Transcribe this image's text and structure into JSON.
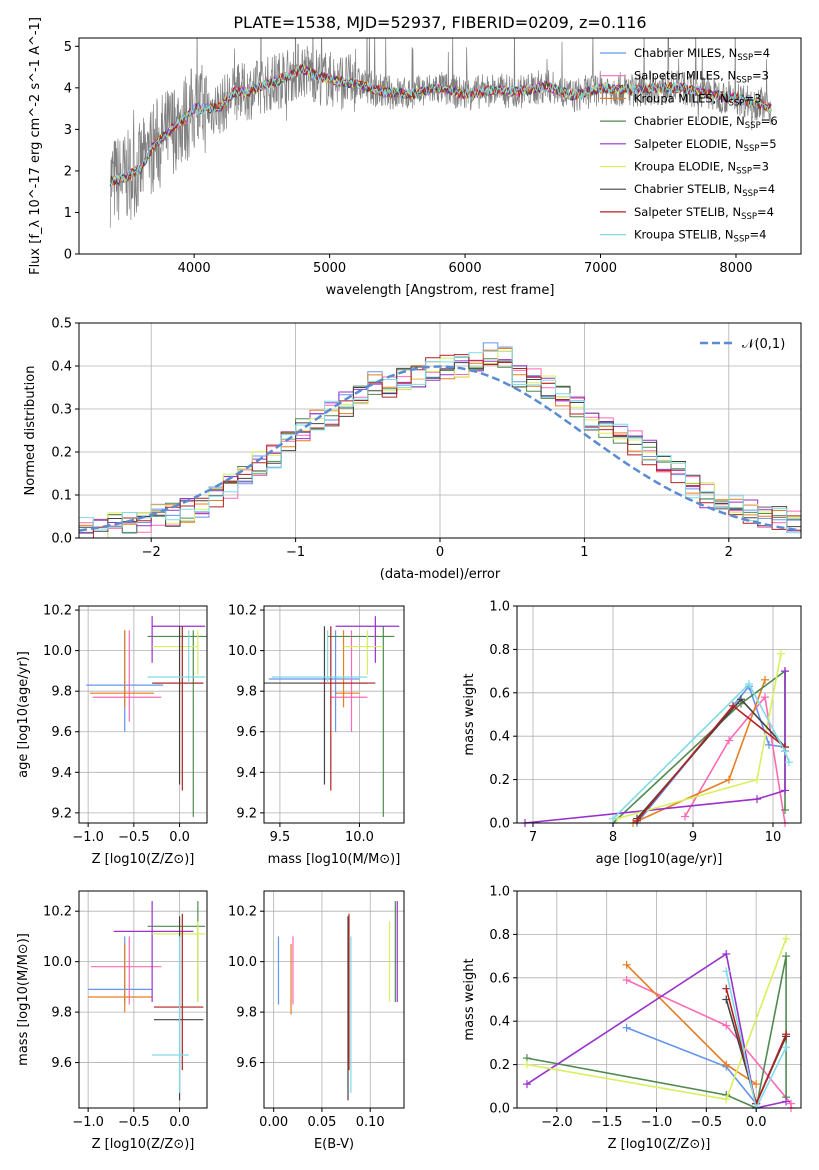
{
  "figure": {
    "title": "PLATE=1538, MJD=52937, FIBERID=0209, z=0.116"
  },
  "chart_data": [
    {
      "id": "spectrum",
      "type": "line",
      "xlabel": "wavelength [Angstrom, rest frame]",
      "ylabel": "Flux [f_λ 10^-17 erg cm^-2 s^-1 A^-1]",
      "xlim": [
        3150,
        8480
      ],
      "ylim": [
        0,
        5.2
      ],
      "xticks": [
        4000,
        5000,
        6000,
        7000,
        8000
      ],
      "yticks": [
        0,
        1,
        2,
        3,
        4,
        5
      ],
      "data_color": "#808080",
      "data_series": {
        "name": "",
        "x": [
          3380,
          3500,
          3600,
          3700,
          3800,
          3900,
          3950,
          4000,
          4100,
          4200,
          4300,
          4400,
          4500,
          4600,
          4700,
          4800,
          4900,
          5000,
          5200,
          5400,
          5600,
          5800,
          6000,
          6200,
          6400,
          6600,
          6800,
          7000,
          7200,
          7400,
          7600,
          7800,
          8000,
          8200,
          8260
        ],
        "y": [
          1.75,
          1.85,
          2.05,
          2.6,
          2.9,
          3.2,
          3.3,
          3.5,
          3.5,
          3.55,
          3.9,
          3.9,
          4.05,
          4.15,
          4.3,
          4.45,
          4.3,
          4.2,
          4.1,
          3.9,
          3.85,
          4.0,
          3.85,
          3.95,
          3.9,
          4.05,
          3.8,
          4.0,
          3.95,
          4.0,
          4.0,
          3.85,
          3.75,
          3.6,
          3.5
        ]
      },
      "legend_location": "upper right",
      "series": [
        {
          "name": "Chabrier MILES",
          "nssp": 4,
          "color": "#6495ed"
        },
        {
          "name": "Salpeter MILES",
          "nssp": 3,
          "color": "#ff69b4"
        },
        {
          "name": "Kroupa MILES",
          "nssp": 3,
          "color": "#e67e22"
        },
        {
          "name": "Chabrier ELODIE",
          "nssp": 6,
          "color": "#4f8a4f"
        },
        {
          "name": "Salpeter ELODIE",
          "nssp": 5,
          "color": "#9932cc"
        },
        {
          "name": "Kroupa ELODIE",
          "nssp": 3,
          "color": "#d7f05f"
        },
        {
          "name": "Chabrier STELIB",
          "nssp": 4,
          "color": "#444444"
        },
        {
          "name": "Salpeter STELIB",
          "nssp": 4,
          "color": "#b22222"
        },
        {
          "name": "Kroupa STELIB",
          "nssp": 4,
          "color": "#7fdbe6"
        }
      ]
    },
    {
      "id": "residuals",
      "type": "histogram",
      "xlabel": "(data-model)/error",
      "ylabel": "Normed distribution",
      "xlim": [
        -2.5,
        2.5
      ],
      "ylim": [
        0,
        0.5
      ],
      "xticks": [
        -2,
        -1,
        0,
        1,
        2
      ],
      "yticks": [
        0.0,
        0.1,
        0.2,
        0.3,
        0.4,
        0.5
      ],
      "grid": true,
      "legend_location": "upper right",
      "reference_curve": {
        "name": "𝒩(0,1)",
        "color": "#5b8bd0",
        "style": "dashed"
      },
      "bin_edges": [
        -2.5,
        -2.4,
        -2.3,
        -2.2,
        -2.1,
        -2.0,
        -1.9,
        -1.8,
        -1.7,
        -1.6,
        -1.5,
        -1.4,
        -1.3,
        -1.2,
        -1.1,
        -1.0,
        -0.9,
        -0.8,
        -0.7,
        -0.6,
        -0.5,
        -0.4,
        -0.3,
        -0.2,
        -0.1,
        0.0,
        0.1,
        0.2,
        0.3,
        0.4,
        0.5,
        0.6,
        0.7,
        0.8,
        0.9,
        1.0,
        1.1,
        1.2,
        1.3,
        1.4,
        1.5,
        1.6,
        1.7,
        1.8,
        1.9,
        2.0,
        2.1,
        2.2,
        2.3,
        2.4,
        2.5
      ],
      "hist_values": [
        0.02,
        0.025,
        0.03,
        0.03,
        0.035,
        0.05,
        0.055,
        0.065,
        0.075,
        0.09,
        0.12,
        0.15,
        0.175,
        0.19,
        0.22,
        0.25,
        0.27,
        0.29,
        0.31,
        0.34,
        0.36,
        0.35,
        0.37,
        0.38,
        0.39,
        0.4,
        0.4,
        0.41,
        0.43,
        0.42,
        0.38,
        0.37,
        0.35,
        0.33,
        0.3,
        0.28,
        0.26,
        0.24,
        0.22,
        0.2,
        0.17,
        0.15,
        0.12,
        0.1,
        0.09,
        0.08,
        0.06,
        0.05,
        0.045,
        0.04
      ]
    },
    {
      "id": "age-vs-Z",
      "type": "scatter",
      "xlabel": "Z [log10(Z/Z⊙)]",
      "ylabel": "age [log10(age/yr)]",
      "xlim": [
        -1.1,
        0.3
      ],
      "ylim": [
        9.15,
        10.22
      ],
      "xticks": [
        -1.0,
        -0.5,
        0.0
      ],
      "yticks": [
        9.2,
        9.4,
        9.6,
        9.8,
        10.0,
        10.2
      ],
      "grid": true,
      "points": [
        {
          "x": -0.6,
          "y": 9.83,
          "xlo": -1.02,
          "xhi": -0.18,
          "ylo": 9.6,
          "yhi": 10.1,
          "color": "#6495ed"
        },
        {
          "x": -0.55,
          "y": 9.77,
          "xlo": -0.95,
          "xhi": -0.2,
          "ylo": 9.65,
          "yhi": 10.1,
          "color": "#ff69b4"
        },
        {
          "x": -0.6,
          "y": 9.79,
          "xlo": -0.98,
          "xhi": -0.28,
          "ylo": 9.72,
          "yhi": 10.1,
          "color": "#e67e22"
        },
        {
          "x": 0.15,
          "y": 10.07,
          "xlo": -0.35,
          "xhi": 0.3,
          "ylo": 9.18,
          "yhi": 10.1,
          "color": "#4f8a4f"
        },
        {
          "x": -0.3,
          "y": 10.12,
          "xlo": -0.3,
          "xhi": 0.28,
          "ylo": 9.94,
          "yhi": 10.17,
          "color": "#9932cc"
        },
        {
          "x": 0.2,
          "y": 10.02,
          "xlo": -0.3,
          "xhi": 0.2,
          "ylo": 9.88,
          "yhi": 10.1,
          "color": "#d7f05f"
        },
        {
          "x": 0.0,
          "y": 9.84,
          "xlo": -0.3,
          "xhi": 0.26,
          "ylo": 9.34,
          "yhi": 10.12,
          "color": "#444444"
        },
        {
          "x": 0.03,
          "y": 9.84,
          "xlo": -0.28,
          "xhi": 0.26,
          "ylo": 9.31,
          "yhi": 10.12,
          "color": "#b22222"
        },
        {
          "x": 0.1,
          "y": 9.87,
          "xlo": -0.35,
          "xhi": 0.28,
          "ylo": 9.84,
          "yhi": 10.1,
          "color": "#7fdbe6"
        }
      ]
    },
    {
      "id": "age-vs-mass",
      "type": "scatter",
      "xlabel": "mass [log10(M/M⊙)]",
      "ylabel": "",
      "xlim": [
        9.4,
        10.28
      ],
      "ylim": [
        9.15,
        10.22
      ],
      "xticks": [
        9.5,
        10.0
      ],
      "yticks": [
        9.2,
        9.4,
        9.6,
        9.8,
        10.0,
        10.2
      ],
      "grid": true,
      "points": [
        {
          "x": 9.85,
          "y": 9.86,
          "xlo": 9.43,
          "xhi": 10.0,
          "ylo": 9.6,
          "yhi": 10.1,
          "color": "#6495ed"
        },
        {
          "x": 9.95,
          "y": 9.77,
          "xlo": 9.82,
          "xhi": 10.05,
          "ylo": 9.6,
          "yhi": 10.1,
          "color": "#ff69b4"
        },
        {
          "x": 9.9,
          "y": 9.79,
          "xlo": 9.85,
          "xhi": 10.0,
          "ylo": 9.72,
          "yhi": 10.1,
          "color": "#e67e22"
        },
        {
          "x": 10.15,
          "y": 10.07,
          "xlo": 9.8,
          "xhi": 10.22,
          "ylo": 9.18,
          "yhi": 10.12,
          "color": "#4f8a4f"
        },
        {
          "x": 10.1,
          "y": 10.12,
          "xlo": 9.85,
          "xhi": 10.25,
          "ylo": 9.94,
          "yhi": 10.17,
          "color": "#9932cc"
        },
        {
          "x": 10.05,
          "y": 10.02,
          "xlo": 9.9,
          "xhi": 10.15,
          "ylo": 9.88,
          "yhi": 10.1,
          "color": "#d7f05f"
        },
        {
          "x": 9.78,
          "y": 9.84,
          "xlo": 9.4,
          "xhi": 10.05,
          "ylo": 9.34,
          "yhi": 10.12,
          "color": "#444444"
        },
        {
          "x": 9.82,
          "y": 9.84,
          "xlo": 9.75,
          "xhi": 10.1,
          "ylo": 9.31,
          "yhi": 10.12,
          "color": "#b22222"
        },
        {
          "x": 9.8,
          "y": 9.87,
          "xlo": 9.45,
          "xhi": 10.05,
          "ylo": 9.84,
          "yhi": 10.1,
          "color": "#7fdbe6"
        }
      ]
    },
    {
      "id": "mass-weight-vs-age",
      "type": "line",
      "xlabel": "age [log10(age/yr)]",
      "ylabel": "mass weight",
      "xlim": [
        6.8,
        10.35
      ],
      "ylim": [
        0.0,
        1.0
      ],
      "xticks": [
        7,
        8,
        9,
        10
      ],
      "yticks": [
        0.0,
        0.2,
        0.4,
        0.6,
        0.8,
        1.0
      ],
      "grid": true,
      "series": [
        {
          "color": "#6495ed",
          "x": [
            8.3,
            9.7,
            9.95,
            10.15
          ],
          "y": [
            0.0,
            0.63,
            0.36,
            0.35
          ]
        },
        {
          "color": "#ff69b4",
          "x": [
            8.9,
            9.45,
            9.9,
            10.15
          ],
          "y": [
            0.03,
            0.38,
            0.58,
            0.0
          ]
        },
        {
          "color": "#e67e22",
          "x": [
            8.25,
            9.45,
            9.9
          ],
          "y": [
            0.0,
            0.2,
            0.66
          ]
        },
        {
          "color": "#4f8a4f",
          "x": [
            8.0,
            9.6,
            10.15,
            10.15
          ],
          "y": [
            0.0,
            0.55,
            0.7,
            0.06
          ]
        },
        {
          "color": "#9932cc",
          "x": [
            6.9,
            9.8,
            10.15,
            10.15
          ],
          "y": [
            0.0,
            0.11,
            0.15,
            0.7
          ]
        },
        {
          "color": "#d7f05f",
          "x": [
            8.05,
            9.8,
            10.1
          ],
          "y": [
            0.02,
            0.2,
            0.78
          ]
        },
        {
          "color": "#444444",
          "x": [
            8.3,
            9.6,
            10.15,
            10.15
          ],
          "y": [
            0.02,
            0.57,
            0.35,
            0.33
          ]
        },
        {
          "color": "#b22222",
          "x": [
            8.3,
            9.5,
            10.15,
            10.15
          ],
          "y": [
            0.01,
            0.54,
            0.35,
            0.33
          ]
        },
        {
          "color": "#7fdbe6",
          "x": [
            8.0,
            9.7,
            10.15,
            10.2
          ],
          "y": [
            0.02,
            0.64,
            0.33,
            0.28
          ]
        }
      ]
    },
    {
      "id": "mass-vs-Z",
      "type": "scatter",
      "xlabel": "Z [log10(Z/Z⊙)]",
      "ylabel": "mass [log10(M/M⊙)]",
      "xlim": [
        -1.1,
        0.3
      ],
      "ylim": [
        9.42,
        10.28
      ],
      "xticks": [
        -1.0,
        -0.5,
        0.0
      ],
      "yticks": [
        9.6,
        9.8,
        10.0,
        10.2
      ],
      "grid": true,
      "points": [
        {
          "x": -0.6,
          "y": 9.89,
          "xlo": -1.0,
          "xhi": -0.3,
          "ylo": 9.83,
          "yhi": 10.1,
          "color": "#6495ed"
        },
        {
          "x": -0.55,
          "y": 9.98,
          "xlo": -0.97,
          "xhi": -0.2,
          "ylo": 9.83,
          "yhi": 10.1,
          "color": "#ff69b4"
        },
        {
          "x": -0.6,
          "y": 9.86,
          "xlo": -1.0,
          "xhi": -0.3,
          "ylo": 9.8,
          "yhi": 10.07,
          "color": "#e67e22"
        },
        {
          "x": 0.2,
          "y": 10.14,
          "xlo": -0.35,
          "xhi": 0.28,
          "ylo": 9.84,
          "yhi": 10.24,
          "color": "#4f8a4f"
        },
        {
          "x": -0.3,
          "y": 10.12,
          "xlo": -0.72,
          "xhi": 0.15,
          "ylo": 9.84,
          "yhi": 10.24,
          "color": "#9932cc"
        },
        {
          "x": 0.2,
          "y": 10.11,
          "xlo": -0.3,
          "xhi": 0.28,
          "ylo": 9.84,
          "yhi": 10.16,
          "color": "#d7f05f"
        },
        {
          "x": 0.0,
          "y": 9.77,
          "xlo": -0.28,
          "xhi": 0.26,
          "ylo": 9.45,
          "yhi": 10.18,
          "color": "#444444"
        },
        {
          "x": 0.03,
          "y": 9.82,
          "xlo": -0.28,
          "xhi": 0.26,
          "ylo": 9.57,
          "yhi": 10.19,
          "color": "#b22222"
        },
        {
          "x": 0.0,
          "y": 9.63,
          "xlo": -0.3,
          "xhi": 0.1,
          "ylo": 9.48,
          "yhi": 10.1,
          "color": "#7fdbe6"
        }
      ]
    },
    {
      "id": "mass-vs-EBV",
      "type": "scatter",
      "xlabel": "E(B-V)",
      "ylabel": "",
      "xlim": [
        -0.01,
        0.135
      ],
      "ylim": [
        9.42,
        10.28
      ],
      "xticks": [
        0.0,
        0.05,
        0.1
      ],
      "yticks": [
        9.6,
        9.8,
        10.0,
        10.2
      ],
      "grid": true,
      "points": [
        {
          "x": 0.005,
          "y": 9.95,
          "ylo": 9.83,
          "yhi": 10.1,
          "color": "#6495ed"
        },
        {
          "x": 0.018,
          "y": 9.9,
          "ylo": 9.79,
          "yhi": 10.07,
          "color": "#e67e22"
        },
        {
          "x": 0.02,
          "y": 9.97,
          "ylo": 9.83,
          "yhi": 10.1,
          "color": "#ff69b4"
        },
        {
          "x": 0.077,
          "y": 9.72,
          "ylo": 9.45,
          "yhi": 10.18,
          "color": "#444444"
        },
        {
          "x": 0.078,
          "y": 9.88,
          "ylo": 9.57,
          "yhi": 10.19,
          "color": "#b22222"
        },
        {
          "x": 0.08,
          "y": 9.6,
          "ylo": 9.48,
          "yhi": 10.1,
          "color": "#7fdbe6"
        },
        {
          "x": 0.12,
          "y": 10.05,
          "ylo": 9.84,
          "yhi": 10.16,
          "color": "#d7f05f"
        },
        {
          "x": 0.126,
          "y": 10.03,
          "ylo": 9.84,
          "yhi": 10.24,
          "color": "#4f8a4f"
        },
        {
          "x": 0.128,
          "y": 10.0,
          "ylo": 9.84,
          "yhi": 10.24,
          "color": "#9932cc"
        }
      ]
    },
    {
      "id": "mass-weight-vs-Z",
      "type": "line",
      "xlabel": "Z [log10(Z/Z⊙)]",
      "ylabel": "mass weight",
      "xlim": [
        -2.4,
        0.45
      ],
      "ylim": [
        0.0,
        1.0
      ],
      "xticks": [
        -2.0,
        -1.5,
        -1.0,
        -0.5,
        0.0
      ],
      "yticks": [
        0.0,
        0.2,
        0.4,
        0.6,
        0.8,
        1.0
      ],
      "grid": true,
      "series": [
        {
          "color": "#6495ed",
          "x": [
            -1.3,
            -0.3,
            0.0,
            0.0
          ],
          "y": [
            0.37,
            0.19,
            0.02,
            0.0
          ]
        },
        {
          "color": "#ff69b4",
          "x": [
            -1.3,
            -0.3,
            0.35,
            0.35
          ],
          "y": [
            0.59,
            0.38,
            0.02,
            0.0
          ]
        },
        {
          "color": "#e67e22",
          "x": [
            -1.3,
            -0.3,
            0.0
          ],
          "y": [
            0.66,
            0.2,
            0.11
          ]
        },
        {
          "color": "#4f8a4f",
          "x": [
            -2.3,
            -0.3,
            0.0,
            0.3,
            0.3
          ],
          "y": [
            0.23,
            0.06,
            0.0,
            0.7,
            0.05
          ]
        },
        {
          "color": "#9932cc",
          "x": [
            -2.3,
            -0.3,
            0.0,
            0.3
          ],
          "y": [
            0.11,
            0.71,
            0.0,
            0.03
          ]
        },
        {
          "color": "#d7f05f",
          "x": [
            -2.3,
            -0.3,
            0.3
          ],
          "y": [
            0.2,
            0.04,
            0.78
          ]
        },
        {
          "color": "#444444",
          "x": [
            -0.3,
            0.0,
            0.3
          ],
          "y": [
            0.5,
            0.02,
            0.33
          ]
        },
        {
          "color": "#b22222",
          "x": [
            -0.3,
            0.0,
            0.3
          ],
          "y": [
            0.55,
            0.02,
            0.34
          ]
        },
        {
          "color": "#7fdbe6",
          "x": [
            -0.3,
            0.0,
            0.3
          ],
          "y": [
            0.63,
            0.0,
            0.28
          ]
        }
      ]
    }
  ]
}
